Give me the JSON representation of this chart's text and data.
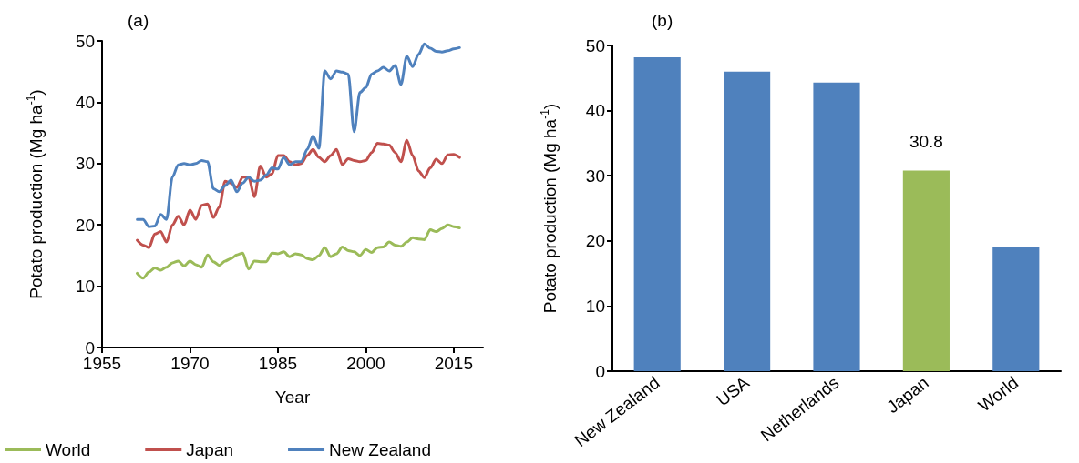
{
  "chart_data": [
    {
      "type": "line",
      "title": "(a)",
      "xlabel": "Year",
      "ylabel": "Potato production (Mg ha$^{-1}$)",
      "x": [
        1961,
        1962,
        1963,
        1964,
        1965,
        1966,
        1967,
        1968,
        1969,
        1970,
        1971,
        1972,
        1973,
        1974,
        1975,
        1976,
        1977,
        1978,
        1979,
        1980,
        1981,
        1982,
        1983,
        1984,
        1985,
        1986,
        1987,
        1988,
        1989,
        1990,
        1991,
        1992,
        1993,
        1994,
        1995,
        1996,
        1997,
        1998,
        1999,
        2000,
        2001,
        2002,
        2003,
        2004,
        2005,
        2006,
        2007,
        2008,
        2009,
        2010,
        2011,
        2012,
        2013,
        2014,
        2015,
        2016
      ],
      "series": [
        {
          "name": "World",
          "color": "#9bbb59",
          "values": [
            12.1,
            11.3,
            12.3,
            13,
            12.6,
            13.1,
            13.8,
            14.1,
            13.3,
            14.1,
            13.5,
            13.1,
            15.1,
            14,
            13.4,
            14.1,
            14.5,
            15.1,
            15.4,
            12.8,
            14.1,
            14,
            14,
            15.4,
            15.3,
            15.6,
            14.8,
            15.3,
            15.1,
            14.5,
            14.3,
            15,
            16.3,
            14.8,
            15.3,
            16.4,
            15.8,
            15.6,
            15,
            16,
            15.5,
            16.3,
            16.4,
            17.2,
            16.7,
            16.5,
            17.2,
            17.9,
            17.7,
            17.6,
            19.2,
            18.9,
            19.4,
            20,
            19.7,
            19.5
          ]
        },
        {
          "name": "Japan",
          "color": "#c0504d",
          "values": [
            17.5,
            16.7,
            16.3,
            18.5,
            18.9,
            17.2,
            20,
            21.4,
            20,
            22.4,
            20.9,
            23.2,
            23.4,
            21.2,
            22.9,
            27.1,
            26.8,
            26.1,
            27.8,
            27.8,
            24.6,
            29.6,
            27.8,
            28.3,
            31.3,
            31.3,
            30.3,
            29.8,
            30,
            31.3,
            32.3,
            31,
            30.3,
            31.3,
            32.3,
            29.8,
            30.8,
            30.5,
            30.3,
            30.5,
            31.8,
            33.3,
            33.2,
            33,
            31.8,
            30.3,
            33.8,
            31.3,
            28.8,
            27.7,
            29.3,
            30.7,
            30,
            31.4,
            31.5,
            31
          ]
        },
        {
          "name": "New Zealand",
          "color": "#4f81bd",
          "values": [
            20.9,
            20.9,
            19.7,
            19.8,
            21.7,
            20.9,
            27.8,
            29.8,
            30,
            29.8,
            30,
            30.5,
            30.3,
            25.9,
            25.4,
            26.4,
            27.3,
            25.4,
            26.8,
            27.8,
            27.1,
            27.3,
            28.1,
            29.3,
            29.1,
            31,
            29.8,
            30.3,
            30.3,
            32.3,
            34.5,
            32.5,
            45.1,
            43.8,
            45.1,
            44.9,
            44.6,
            35.2,
            41.6,
            42.4,
            44.6,
            45.1,
            45.7,
            45.1,
            46,
            42.9,
            47.5,
            45.8,
            47.8,
            49.5,
            48.8,
            48.3,
            48.2,
            48.4,
            48.7,
            48.9
          ]
        }
      ],
      "xlim": [
        1955,
        2020
      ],
      "xticks": [
        1955,
        1970,
        1985,
        2000,
        2015
      ],
      "ylim": [
        0,
        50
      ],
      "yticks": [
        0,
        10,
        20,
        30,
        40,
        50
      ],
      "legend": "bottom",
      "marker": "none",
      "line_style": "solid",
      "grid": false
    },
    {
      "type": "bar",
      "title": "(b)",
      "ylabel": "Potato production (Mg ha$^{-1}$)",
      "categories": [
        "New Zealand",
        "USA",
        "Netherlands",
        "Japan",
        "World"
      ],
      "values": [
        48.2,
        46,
        44.3,
        30.8,
        19
      ],
      "colors": [
        "#4f81bd",
        "#4f81bd",
        "#4f81bd",
        "#9bbb59",
        "#4f81bd"
      ],
      "value_labels": [
        null,
        null,
        null,
        "30.8",
        null
      ],
      "ylim": [
        0,
        50
      ],
      "yticks": [
        0,
        10,
        20,
        30,
        40,
        50
      ],
      "grid": false,
      "legend": false
    }
  ]
}
